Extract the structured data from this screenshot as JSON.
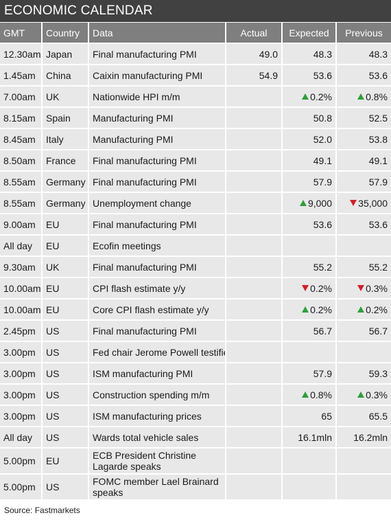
{
  "title": "ECONOMIC CALENDAR",
  "columns": {
    "gmt": "GMT",
    "country": "Country",
    "data": "Data",
    "actual": "Actual",
    "expected": "Expected",
    "previous": "Previous"
  },
  "rows": [
    {
      "gmt": "12.30am",
      "country": "Japan",
      "data": "Final manufacturing PMI",
      "actual": "49.0",
      "expected": "48.3",
      "previous": "48.3"
    },
    {
      "gmt": "1.45am",
      "country": "China",
      "data": "Caixin manufacturing PMI",
      "actual": "54.9",
      "expected": "53.6",
      "previous": "53.6"
    },
    {
      "gmt": "7.00am",
      "country": "UK",
      "data": "Nationwide HPI m/m",
      "actual": "",
      "expected": "0.2%",
      "previous": "0.8%"
    },
    {
      "gmt": "8.15am",
      "country": "Spain",
      "data": "Manufacturing PMI",
      "actual": "",
      "expected": "50.8",
      "previous": "52.5"
    },
    {
      "gmt": "8.45am",
      "country": "Italy",
      "data": "Manufacturing PMI",
      "actual": "",
      "expected": "52.0",
      "previous": "53.8"
    },
    {
      "gmt": "8.50am",
      "country": "France",
      "data": "Final manufacturing PMI",
      "actual": "",
      "expected": "49.1",
      "previous": "49.1"
    },
    {
      "gmt": "8.55am",
      "country": "Germany",
      "data": "Final manufacturing PMI",
      "actual": "",
      "expected": "57.9",
      "previous": "57.9"
    },
    {
      "gmt": "8.55am",
      "country": "Germany",
      "data": "Unemployment change",
      "actual": "",
      "expected": "9,000",
      "previous": "35,000"
    },
    {
      "gmt": "9.00am",
      "country": "EU",
      "data": "Final manufacturing PMI",
      "actual": "",
      "expected": "53.6",
      "previous": "53.6"
    },
    {
      "gmt": "All day",
      "country": "EU",
      "data": "Ecofin meetings",
      "actual": "",
      "expected": "",
      "previous": ""
    },
    {
      "gmt": "9.30am",
      "country": "UK",
      "data": "Final manufacturing PMI",
      "actual": "",
      "expected": "55.2",
      "previous": "55.2"
    },
    {
      "gmt": "10.00am",
      "country": "EU",
      "data": "CPI flash estimate y/y",
      "actual": "",
      "expected": "0.2%",
      "previous": "0.3%"
    },
    {
      "gmt": "10.00am",
      "country": "EU",
      "data": "Core CPI flash estimate y/y",
      "actual": "",
      "expected": "0.2%",
      "previous": "0.2%"
    },
    {
      "gmt": "2.45pm",
      "country": "US",
      "data": "Final manufacturing PMI",
      "actual": "",
      "expected": "56.7",
      "previous": "56.7"
    },
    {
      "gmt": "3.00pm",
      "country": "US",
      "data": "Fed chair Jerome Powell testifies",
      "actual": "",
      "expected": "",
      "previous": ""
    },
    {
      "gmt": "3.00pm",
      "country": "US",
      "data": "ISM manufacturing PMI",
      "actual": "",
      "expected": "57.9",
      "previous": "59.3"
    },
    {
      "gmt": "3.00pm",
      "country": "US",
      "data": " Construction spending m/m",
      "actual": "",
      "expected": "0.8%",
      "previous": "0.3%"
    },
    {
      "gmt": "3.00pm",
      "country": "US",
      "data": "ISM manufacturing prices",
      "actual": "",
      "expected": "65",
      "previous": "65.5"
    },
    {
      "gmt": "All day",
      "country": "US",
      "data": "Wards total vehicle sales",
      "actual": "",
      "expected": "16.1mln",
      "previous": "16.2mln"
    },
    {
      "gmt": "5.00pm",
      "country": "EU",
      "data": "ECB President Christine Lagarde speaks",
      "actual": "",
      "expected": "",
      "previous": ""
    },
    {
      "gmt": "5.00pm",
      "country": "US",
      "data": "FOMC member Lael Brainard speaks",
      "actual": "",
      "expected": "",
      "previous": ""
    }
  ],
  "arrows": {
    "2": {
      "expected": "up",
      "previous": "up"
    },
    "7": {
      "expected": "up",
      "previous": "down"
    },
    "11": {
      "expected": "down",
      "previous": "down"
    },
    "12": {
      "expected": "up",
      "previous": "up"
    },
    "16": {
      "expected": "up",
      "previous": "up"
    }
  },
  "colors": {
    "up": "#2e9e3a",
    "down": "#d0202a",
    "header": "#7f7f7f",
    "title_bar": "#414141",
    "row": "#e8e8e8"
  },
  "source": "Source: Fastmarkets"
}
